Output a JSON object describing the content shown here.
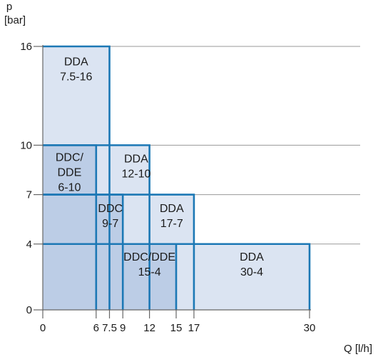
{
  "chart_data": {
    "type": "area",
    "title": "",
    "xlabel": "Q [l/h]",
    "ylabel_lines": [
      "p",
      "[bar]"
    ],
    "xlim": [
      0,
      30
    ],
    "ylim": [
      0,
      16
    ],
    "x_ticks": [
      0,
      6,
      7.5,
      9,
      12,
      15,
      17,
      30
    ],
    "y_ticks": [
      0,
      4,
      7,
      10,
      16
    ],
    "grid": "horizontal",
    "colors": {
      "light_fill": "#dbe4f2",
      "dark_fill": "#bccde6",
      "border": "#1c78b5",
      "grid": "#9a9a9a",
      "axis": "#666666"
    },
    "series": [
      {
        "name": "DDA 7.5-16",
        "label_lines": [
          "DDA",
          "7.5-16"
        ],
        "q_max": 7.5,
        "p_max": 16,
        "shade": "light"
      },
      {
        "name": "DDA 12-10",
        "label_lines": [
          "DDA",
          "12-10"
        ],
        "q_max": 12,
        "p_max": 10,
        "shade": "light"
      },
      {
        "name": "DDA 17-7",
        "label_lines": [
          "DDA",
          "17-7"
        ],
        "q_max": 17,
        "p_max": 7,
        "shade": "light"
      },
      {
        "name": "DDA 30-4",
        "label_lines": [
          "DDA",
          "30-4"
        ],
        "q_max": 30,
        "p_max": 4,
        "shade": "light"
      },
      {
        "name": "DDC/DDE 6-10",
        "label_lines": [
          "DDC/",
          "DDE",
          "6-10"
        ],
        "q_max": 6,
        "p_max": 10,
        "shade": "dark"
      },
      {
        "name": "DDC 9-7",
        "label_lines": [
          "DDC",
          "9-7"
        ],
        "q_max": 9,
        "p_max": 7,
        "shade": "dark"
      },
      {
        "name": "DDC/DDE 15-4",
        "label_lines": [
          "DDC/DDE",
          "15-4"
        ],
        "q_max": 15,
        "p_max": 4,
        "shade": "dark"
      }
    ]
  }
}
